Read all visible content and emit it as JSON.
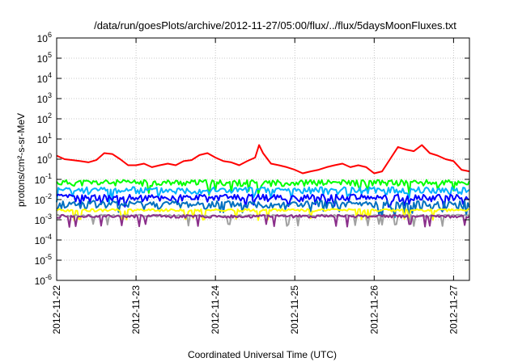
{
  "chart_data": {
    "type": "line",
    "title": "/data/run/goesPlots/archive/2012-11-27/05:00/flux/../flux/5daysMoonFluxes.txt",
    "xlabel": "Coordinated Universal Time (UTC)",
    "ylabel": "protons/cm²-s-sr-MeV",
    "x_range_days": [
      0,
      5.2
    ],
    "x_ticks": [
      {
        "day": 0,
        "label": "2012-11-22"
      },
      {
        "day": 1,
        "label": "2012-11-23"
      },
      {
        "day": 2,
        "label": "2012-11-24"
      },
      {
        "day": 3,
        "label": "2012-11-25"
      },
      {
        "day": 4,
        "label": "2012-11-26"
      },
      {
        "day": 5,
        "label": "2012-11-27"
      }
    ],
    "y_scale": "log",
    "ylim": [
      1e-06,
      1000000.0
    ],
    "y_ticks": [
      {
        "value": 1000000.0,
        "mantissa": "10",
        "exp": "6"
      },
      {
        "value": 100000.0,
        "mantissa": "10",
        "exp": "5"
      },
      {
        "value": 10000.0,
        "mantissa": "10",
        "exp": "4"
      },
      {
        "value": 1000.0,
        "mantissa": "10",
        "exp": "3"
      },
      {
        "value": 100.0,
        "mantissa": "10",
        "exp": "2"
      },
      {
        "value": 10.0,
        "mantissa": "10",
        "exp": "1"
      },
      {
        "value": 1.0,
        "mantissa": "10",
        "exp": "0"
      },
      {
        "value": 0.1,
        "mantissa": "10",
        "exp": "-1"
      },
      {
        "value": 0.01,
        "mantissa": "10",
        "exp": "-2"
      },
      {
        "value": 0.001,
        "mantissa": "10",
        "exp": "-3"
      },
      {
        "value": 0.0001,
        "mantissa": "10",
        "exp": "-4"
      },
      {
        "value": 1e-05,
        "mantissa": "10",
        "exp": "-5"
      },
      {
        "value": 1e-06,
        "mantissa": "10",
        "exp": "-6"
      }
    ],
    "grid": true,
    "series": [
      {
        "color": "#ff0000",
        "x": [
          0,
          0.1,
          0.2,
          0.3,
          0.4,
          0.5,
          0.6,
          0.7,
          0.8,
          0.9,
          1.0,
          1.1,
          1.2,
          1.3,
          1.4,
          1.5,
          1.6,
          1.7,
          1.8,
          1.9,
          2.0,
          2.1,
          2.2,
          2.3,
          2.4,
          2.5,
          2.55,
          2.6,
          2.7,
          2.8,
          2.9,
          3.0,
          3.1,
          3.2,
          3.3,
          3.4,
          3.5,
          3.6,
          3.7,
          3.8,
          3.9,
          4.0,
          4.1,
          4.2,
          4.3,
          4.4,
          4.5,
          4.6,
          4.7,
          4.8,
          4.9,
          5.0,
          5.1,
          5.2
        ],
        "y": [
          1.5,
          1.0,
          0.9,
          0.8,
          0.7,
          0.9,
          2.0,
          1.8,
          1.0,
          0.5,
          0.5,
          0.6,
          0.4,
          0.5,
          0.6,
          0.5,
          0.8,
          0.9,
          1.6,
          2.0,
          1.2,
          0.8,
          0.7,
          0.5,
          0.8,
          1.2,
          5.0,
          2.0,
          0.6,
          0.5,
          0.4,
          0.3,
          0.2,
          0.25,
          0.3,
          0.4,
          0.5,
          0.6,
          0.4,
          0.5,
          0.4,
          0.2,
          0.25,
          1.0,
          4.0,
          3.0,
          2.5,
          5.0,
          2.0,
          1.5,
          1.0,
          0.8,
          0.3,
          0.25
        ]
      },
      {
        "color": "#00ff00",
        "base": 0.07,
        "amp": 0.7,
        "seed": 11
      },
      {
        "color": "#00b0ff",
        "base": 0.03,
        "amp": 0.8,
        "seed": 23
      },
      {
        "color": "#0000ff",
        "base": 0.013,
        "amp": 0.8,
        "seed": 37
      },
      {
        "color": "#0070c0",
        "base": 0.006,
        "amp": 0.9,
        "seed": 41
      },
      {
        "color": "#ffff00",
        "base": 0.003,
        "amp": 0.3,
        "seed": 53
      },
      {
        "color": "#a0a0a0",
        "base": 0.0016,
        "amp": 0.25,
        "seed": 67
      },
      {
        "color": "#8b2f8b",
        "base": 0.0015,
        "amp": 0.35,
        "seed": 71
      }
    ]
  }
}
